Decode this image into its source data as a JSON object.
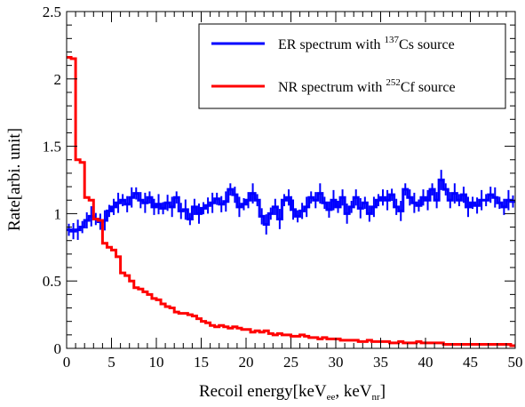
{
  "chart_data": {
    "type": "line",
    "subtype": "step-histogram-with-errorbars",
    "xlabel_parts": [
      "Recoil energy[keV",
      "ee",
      ", keV",
      "nr",
      "]"
    ],
    "ylabel": "Rate[arbi. unit]",
    "xlim": [
      0,
      50
    ],
    "ylim": [
      0,
      2.5
    ],
    "x_ticks": [
      0,
      5,
      10,
      15,
      20,
      25,
      30,
      35,
      40,
      45,
      50
    ],
    "y_ticks": [
      0,
      0.5,
      1,
      1.5,
      2,
      2.5
    ],
    "y_tick_labels": [
      "0",
      "0.5",
      "1",
      "1.5",
      "2",
      "2.5"
    ],
    "grid": false,
    "legend_position": "top-right",
    "bin_width": 0.5,
    "series": [
      {
        "name_parts": [
          "ER spectrum with ",
          "137",
          "Cs source"
        ],
        "color": "#0000ff",
        "errorbars": true,
        "values": [
          0.88,
          0.87,
          0.88,
          0.9,
          0.95,
          0.98,
          0.96,
          0.94,
          0.95,
          1.02,
          1.05,
          1.08,
          1.1,
          1.07,
          1.12,
          1.15,
          1.1,
          1.08,
          1.12,
          1.05,
          1.07,
          1.04,
          1.08,
          1.05,
          1.12,
          1.02,
          1.03,
          0.96,
          1.05,
          1.0,
          1.04,
          1.06,
          1.08,
          1.11,
          1.07,
          1.09,
          1.18,
          1.14,
          1.05,
          1.07,
          1.1,
          1.15,
          1.1,
          0.98,
          0.92,
          1.0,
          1.05,
          0.96,
          1.1,
          1.12,
          1.03,
          0.98,
          1.02,
          1.05,
          1.12,
          1.1,
          1.15,
          1.08,
          1.03,
          1.1,
          1.05,
          1.12,
          1.0,
          1.05,
          1.12,
          1.04,
          1.08,
          1.0,
          1.05,
          1.1,
          1.12,
          1.1,
          1.14,
          1.05,
          1.02,
          1.18,
          1.12,
          1.08,
          1.06,
          1.12,
          1.1,
          1.18,
          1.1,
          1.25,
          1.18,
          1.1,
          1.15,
          1.1,
          1.14,
          1.05,
          1.08,
          1.06,
          1.1,
          1.1,
          1.14,
          1.12,
          1.08,
          1.05,
          1.1,
          1.09
        ]
      },
      {
        "name_parts": [
          "NR spectrum with ",
          "252",
          "Cf source"
        ],
        "color": "#ff0000",
        "errorbars": false,
        "values": [
          2.16,
          2.15,
          1.4,
          1.38,
          1.12,
          1.1,
          0.96,
          0.95,
          0.78,
          0.75,
          0.73,
          0.68,
          0.56,
          0.54,
          0.5,
          0.45,
          0.44,
          0.42,
          0.4,
          0.37,
          0.36,
          0.33,
          0.31,
          0.3,
          0.27,
          0.26,
          0.26,
          0.25,
          0.24,
          0.22,
          0.2,
          0.19,
          0.17,
          0.16,
          0.17,
          0.16,
          0.15,
          0.16,
          0.15,
          0.14,
          0.14,
          0.12,
          0.13,
          0.12,
          0.13,
          0.11,
          0.1,
          0.11,
          0.1,
          0.1,
          0.09,
          0.09,
          0.1,
          0.09,
          0.08,
          0.08,
          0.07,
          0.08,
          0.07,
          0.07,
          0.07,
          0.06,
          0.06,
          0.06,
          0.06,
          0.05,
          0.05,
          0.06,
          0.05,
          0.05,
          0.05,
          0.05,
          0.04,
          0.04,
          0.05,
          0.04,
          0.04,
          0.04,
          0.05,
          0.04,
          0.04,
          0.04,
          0.04,
          0.04,
          0.03,
          0.03,
          0.03,
          0.03,
          0.03,
          0.03,
          0.03,
          0.03,
          0.03,
          0.03,
          0.03,
          0.03,
          0.03,
          0.03,
          0.03,
          0.02
        ]
      }
    ]
  }
}
